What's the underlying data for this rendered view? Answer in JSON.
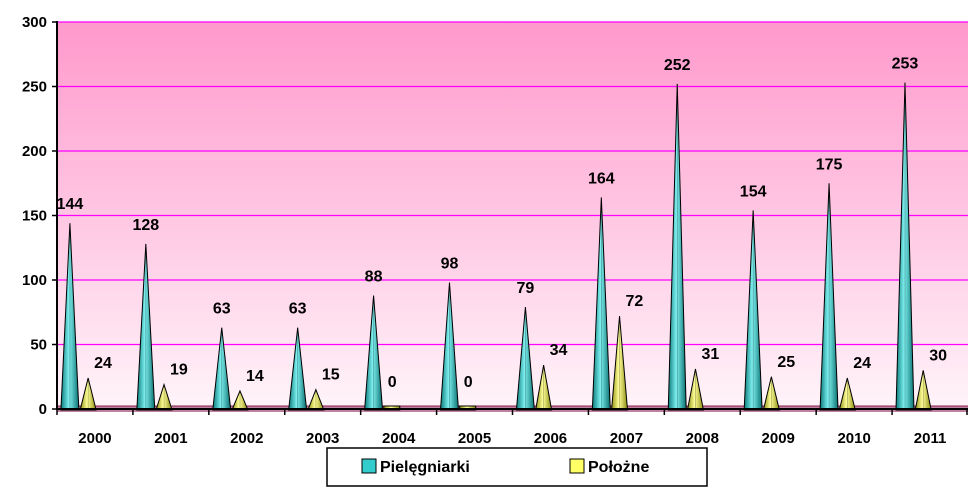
{
  "chart_data": {
    "type": "bar",
    "categories": [
      "2000",
      "2001",
      "2002",
      "2003",
      "2004",
      "2005",
      "2006",
      "2007",
      "2008",
      "2009",
      "2010",
      "2011"
    ],
    "series": [
      {
        "name": "Pielęgniarki",
        "values": [
          144,
          128,
          63,
          63,
          88,
          98,
          79,
          164,
          252,
          154,
          175,
          253
        ],
        "color": "#33cccc"
      },
      {
        "name": "Położne",
        "values": [
          24,
          19,
          14,
          15,
          0,
          0,
          34,
          72,
          31,
          25,
          24,
          30
        ],
        "color": "#ffff66"
      }
    ],
    "ylim": [
      0,
      300
    ],
    "yticks": [
      "0",
      "50",
      "100",
      "150",
      "200",
      "250",
      "300"
    ],
    "grid": true,
    "legend": "bottom",
    "background": {
      "top": "#ff99cc",
      "bottom": "#fff4f9"
    },
    "gridline_color": "#ff00ff"
  }
}
